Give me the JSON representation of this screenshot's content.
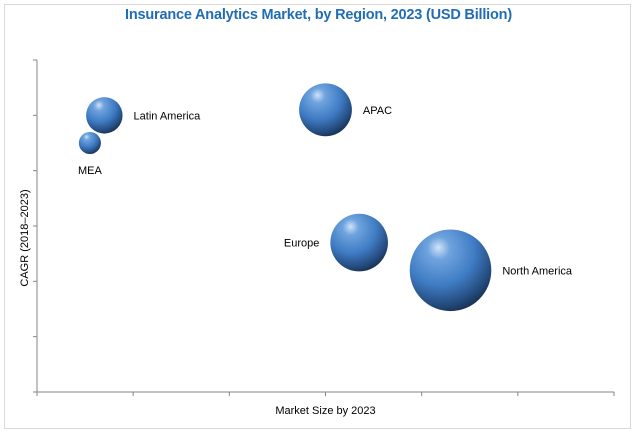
{
  "chart_data": {
    "type": "bubble",
    "title": "Insurance Analytics Market, by Region, 2023 (USD Billion)",
    "xlabel": "Market Size by 2023",
    "ylabel": "CAGR (2018–2023)",
    "xlim": [
      0,
      6
    ],
    "ylim": [
      0,
      6
    ],
    "x_ticks": 6,
    "y_ticks": 6,
    "grid": false,
    "tick_labels_shown": false,
    "bubble_color": "#3f7cc4",
    "bubble_shade": "#162a45",
    "points": [
      {
        "label": "Latin America",
        "x": 0.7,
        "y": 5.0,
        "size": 0.38,
        "label_pos": "right"
      },
      {
        "label": "MEA",
        "x": 0.55,
        "y": 4.5,
        "size": 0.23,
        "label_pos": "below"
      },
      {
        "label": "APAC",
        "x": 3.0,
        "y": 5.1,
        "size": 0.55,
        "label_pos": "right"
      },
      {
        "label": "Europe",
        "x": 3.35,
        "y": 2.7,
        "size": 0.6,
        "label_pos": "left"
      },
      {
        "label": "North America",
        "x": 4.3,
        "y": 2.2,
        "size": 0.85,
        "label_pos": "right"
      }
    ]
  }
}
